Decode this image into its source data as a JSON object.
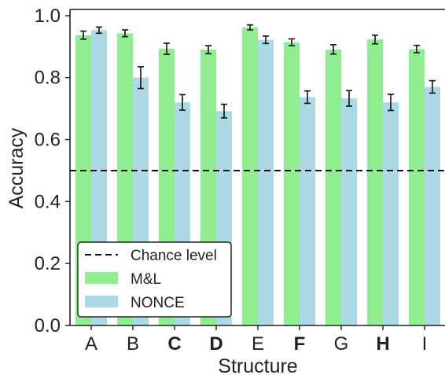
{
  "chart_data": {
    "type": "bar",
    "xlabel": "Structure",
    "ylabel": "Accuracy",
    "ylim": [
      0,
      1.02
    ],
    "yticks": [
      "0.0",
      "0.2",
      "0.4",
      "0.6",
      "0.8",
      "1.0"
    ],
    "yticks_values": [
      0,
      0.2,
      0.4,
      0.6,
      0.8,
      1.0
    ],
    "categories": [
      "A",
      "B",
      "C",
      "D",
      "E",
      "F",
      "G",
      "H",
      "I"
    ],
    "bold_categories": [
      "C",
      "D",
      "F",
      "H"
    ],
    "chance_level": 0.5,
    "chance_label": "Chance level",
    "legend_position": "lower-left",
    "grid": false,
    "series": [
      {
        "name": "M&L",
        "color": "#90ee90",
        "values": [
          0.937,
          0.943,
          0.893,
          0.89,
          0.962,
          0.914,
          0.891,
          0.923,
          0.892
        ],
        "errors": [
          0.013,
          0.011,
          0.018,
          0.013,
          0.008,
          0.011,
          0.015,
          0.014,
          0.012
        ]
      },
      {
        "name": "NONCE",
        "color": "#add8e6",
        "values": [
          0.953,
          0.8,
          0.72,
          0.692,
          0.922,
          0.737,
          0.733,
          0.72,
          0.77
        ],
        "errors": [
          0.01,
          0.035,
          0.025,
          0.022,
          0.012,
          0.02,
          0.025,
          0.026,
          0.02
        ]
      }
    ]
  }
}
